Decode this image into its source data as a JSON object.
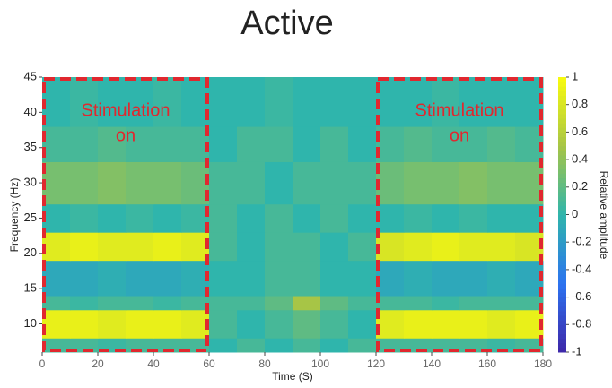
{
  "chart_data": {
    "type": "heatmap",
    "title": "Active",
    "x_label": "Time (S)",
    "y_label": "Frequency (Hz)",
    "colorbar_label": "Relative amplitude",
    "x": [
      0,
      10,
      20,
      30,
      40,
      50,
      60,
      70,
      80,
      90,
      100,
      110,
      120,
      130,
      140,
      150,
      160,
      170,
      180
    ],
    "y": [
      6,
      8,
      12,
      14,
      19,
      23,
      27,
      33,
      38,
      45
    ],
    "z": [
      [
        0.1,
        0.1,
        0.05,
        0.1,
        0.1,
        0.1,
        0.0,
        0.1,
        0.0,
        0.1,
        0.0,
        0.1,
        0.1,
        0.1,
        0.1,
        0.1,
        0.05,
        0.1
      ],
      [
        0.9,
        0.9,
        0.85,
        0.9,
        0.9,
        0.85,
        0.1,
        0.0,
        0.1,
        0.2,
        0.1,
        0.0,
        0.85,
        0.9,
        0.9,
        0.9,
        0.85,
        0.9
      ],
      [
        0.1,
        0.05,
        0.1,
        0.1,
        0.05,
        0.1,
        0.1,
        0.1,
        0.2,
        0.5,
        0.2,
        0.1,
        0.1,
        0.1,
        0.05,
        0.1,
        0.1,
        0.1
      ],
      [
        -0.1,
        -0.1,
        -0.05,
        -0.1,
        -0.1,
        -0.05,
        0.0,
        0.0,
        0.1,
        0.1,
        0.0,
        0.0,
        -0.1,
        -0.05,
        -0.1,
        -0.1,
        -0.05,
        -0.1
      ],
      [
        0.85,
        0.9,
        0.85,
        0.85,
        0.9,
        0.85,
        0.1,
        0.0,
        0.1,
        0.1,
        0.0,
        0.1,
        0.8,
        0.85,
        0.9,
        0.85,
        0.85,
        0.8
      ],
      [
        0.0,
        0.05,
        0.0,
        0.05,
        0.0,
        0.05,
        0.1,
        0.0,
        0.1,
        0.0,
        0.1,
        0.0,
        0.0,
        0.05,
        0.0,
        0.05,
        0.0,
        0.0
      ],
      [
        0.3,
        0.3,
        0.35,
        0.3,
        0.3,
        0.25,
        0.1,
        0.1,
        0.0,
        0.1,
        0.1,
        0.1,
        0.25,
        0.3,
        0.3,
        0.35,
        0.3,
        0.3
      ],
      [
        0.1,
        0.1,
        0.15,
        0.1,
        0.1,
        0.1,
        0.0,
        0.1,
        0.1,
        0.0,
        0.1,
        0.0,
        0.1,
        0.15,
        0.1,
        0.1,
        0.15,
        0.1
      ],
      [
        0.0,
        0.05,
        0.0,
        0.0,
        0.05,
        0.0,
        0.0,
        0.0,
        0.05,
        0.0,
        0.0,
        0.0,
        0.0,
        0.0,
        0.05,
        0.0,
        0.0,
        0.0
      ]
    ],
    "xlim": [
      0,
      180
    ],
    "xticks": [
      0,
      20,
      40,
      60,
      80,
      100,
      120,
      140,
      160,
      180
    ],
    "ylim": [
      6,
      45
    ],
    "yticks": [
      10,
      15,
      20,
      25,
      30,
      35,
      40,
      45
    ],
    "zlim": [
      -1,
      1
    ],
    "zticks": [
      1,
      0.8,
      0.6,
      0.4,
      0.2,
      0,
      -0.2,
      -0.4,
      -0.6,
      -0.8,
      -1
    ],
    "colormap": [
      "#3e26a8",
      "#2c73f0",
      "#2fb5ac",
      "#a7c546",
      "#f9fb0e"
    ],
    "boxes": [
      {
        "x": [
          0,
          60
        ],
        "lines": [
          "Stimulation",
          "on"
        ]
      },
      {
        "x": [
          120,
          180
        ],
        "lines": [
          "Stimulation",
          "on"
        ]
      }
    ],
    "box_color": "#e0282f"
  }
}
